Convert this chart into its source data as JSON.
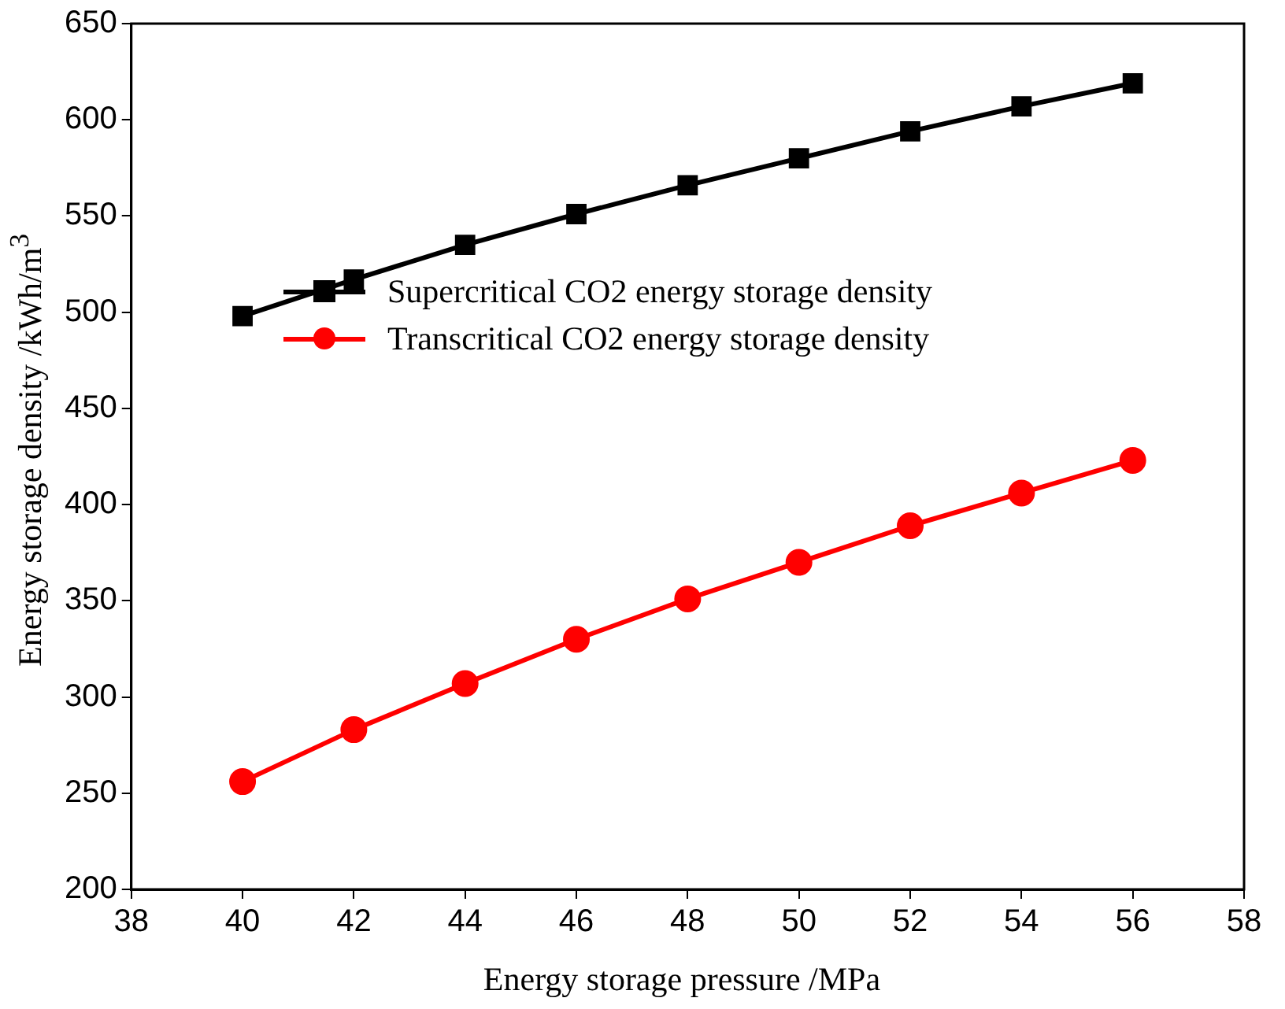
{
  "chart_data": {
    "type": "line",
    "xlabel": "Energy storage pressure /MPa",
    "ylabel": "Energy storage density /kWh/m$^{3}$",
    "x": [
      40,
      42,
      44,
      46,
      48,
      50,
      52,
      54,
      56
    ],
    "series": [
      {
        "name": "Supercritical CO2 energy storage density",
        "color": "#000000",
        "marker": "square",
        "values": [
          498,
          517,
          535,
          551,
          566,
          580,
          594,
          607,
          619
        ]
      },
      {
        "name": "Transcritical CO2 energy storage density",
        "color": "#ff0000",
        "marker": "circle",
        "values": [
          256,
          283,
          307,
          330,
          351,
          370,
          389,
          406,
          423
        ]
      }
    ],
    "xlim": [
      38,
      58
    ],
    "xticks": [
      38,
      40,
      42,
      44,
      46,
      48,
      50,
      52,
      54,
      56,
      58
    ],
    "ylim": [
      200,
      650
    ],
    "yticks": [
      200,
      250,
      300,
      350,
      400,
      450,
      500,
      550,
      600,
      650
    ],
    "grid": false,
    "legend": "left",
    "line_style": "solid"
  }
}
